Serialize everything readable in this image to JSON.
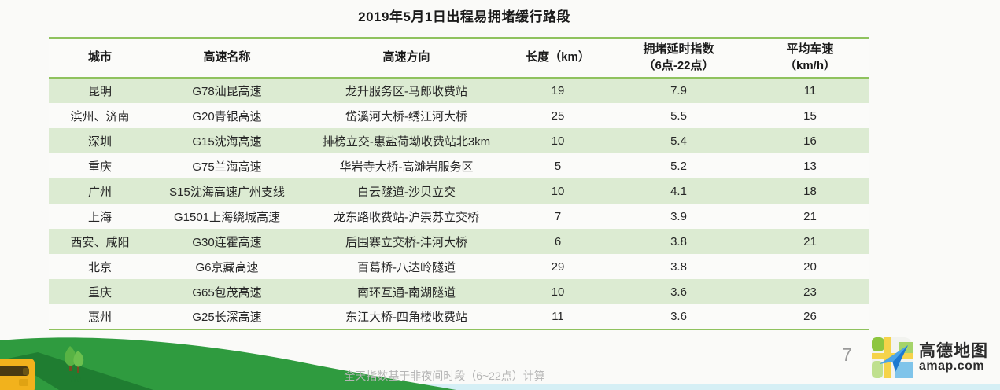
{
  "page": {
    "title": "2019年5月1日出程易拥堵缓行路段",
    "footnote": "全天指数基于非夜间时段（6~22点）计算",
    "page_number": "7"
  },
  "brand": {
    "name": "高德地图",
    "domain": "amap.com",
    "icon": "amap-map-paper-plane-icon"
  },
  "colors": {
    "accent_green": "#8fc25e",
    "row_green": "#dcebd2",
    "row_white": "#fbfbf9",
    "hill_green": "#2f9b3f",
    "hill_shadow_green": "#1f7d31",
    "water_blue": "#d5eff5",
    "car_yellow": "#f2b21c",
    "footnote_gray": "#b5b5b5"
  },
  "chart_data": {
    "type": "table",
    "title": "2019年5月1日出程易拥堵缓行路段",
    "headers": [
      {
        "line1": "城市",
        "line2": ""
      },
      {
        "line1": "高速名称",
        "line2": ""
      },
      {
        "line1": "高速方向",
        "line2": ""
      },
      {
        "line1": "长度（km）",
        "line2": ""
      },
      {
        "line1": "拥堵延时指数",
        "line2": "（6点-22点）"
      },
      {
        "line1": "平均车速",
        "line2": "（km/h）"
      }
    ],
    "rows": [
      [
        "昆明",
        "G78汕昆高速",
        "龙升服务区-马郎收费站",
        "19",
        "7.9",
        "11"
      ],
      [
        "滨州、济南",
        "G20青银高速",
        "岱溪河大桥-绣江河大桥",
        "25",
        "5.5",
        "15"
      ],
      [
        "深圳",
        "G15沈海高速",
        "排榜立交-惠盐荷坳收费站北3km",
        "10",
        "5.4",
        "16"
      ],
      [
        "重庆",
        "G75兰海高速",
        "华岩寺大桥-高滩岩服务区",
        "5",
        "5.2",
        "13"
      ],
      [
        "广州",
        "S15沈海高速广州支线",
        "白云隧道-沙贝立交",
        "10",
        "4.1",
        "18"
      ],
      [
        "上海",
        "G1501上海绕城高速",
        "龙东路收费站-沪崇苏立交桥",
        "7",
        "3.9",
        "21"
      ],
      [
        "西安、咸阳",
        "G30连霍高速",
        "后围寨立交桥-沣河大桥",
        "6",
        "3.8",
        "21"
      ],
      [
        "北京",
        "G6京藏高速",
        "百葛桥-八达岭隧道",
        "29",
        "3.8",
        "20"
      ],
      [
        "重庆",
        "G65包茂高速",
        "南环互通-南湖隧道",
        "10",
        "3.6",
        "23"
      ],
      [
        "惠州",
        "G25长深高速",
        "东江大桥-四角楼收费站",
        "11",
        "3.6",
        "26"
      ]
    ]
  }
}
